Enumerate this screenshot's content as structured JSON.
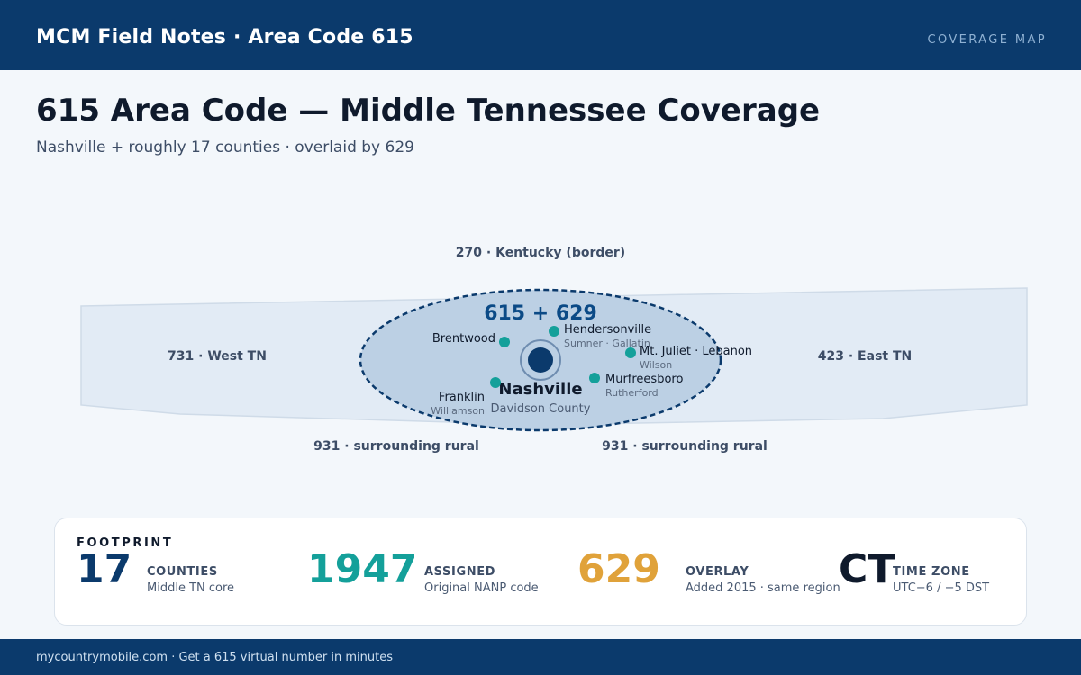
{
  "header": {
    "brand": "MCM Field Notes · Area Code 615",
    "section": "COVERAGE MAP"
  },
  "page": {
    "title": "615 Area Code — Middle Tennessee Coverage",
    "subtitle": "Nashville + roughly 17 counties · overlaid by 629"
  },
  "map": {
    "north_label": "270 · Kentucky (border)",
    "west_label": "731 · West TN",
    "east_label": "423 · East TN",
    "south_left_label": "931 · surrounding rural",
    "south_right_label": "931 · surrounding rural",
    "zone_label": "615 + 629",
    "center": {
      "city": "Nashville",
      "county": "Davidson County"
    },
    "cities": [
      {
        "name": "Brentwood",
        "county": ""
      },
      {
        "name": "Hendersonville",
        "county": "Sumner · Gallatin"
      },
      {
        "name": "Mt. Juliet · Lebanon",
        "county": "Wilson"
      },
      {
        "name": "Murfreesboro",
        "county": "Rutherford"
      },
      {
        "name": "Franklin",
        "county": "Williamson"
      }
    ],
    "colors": {
      "state_fill": "#e2ebf5",
      "zone_fill": "#bcd0e4",
      "zone_stroke": "#0b3a6c",
      "city_dot": "#14a09a",
      "center_dot": "#0b3a6c"
    }
  },
  "stats": {
    "label": "FOOTPRINT",
    "items": [
      {
        "value": "17",
        "title": "COUNTIES",
        "desc": "Middle TN core",
        "color": "#0b3a6c"
      },
      {
        "value": "1947",
        "title": "ASSIGNED",
        "desc": "Original NANP code",
        "color": "#14a09a"
      },
      {
        "value": "629",
        "title": "OVERLAY",
        "desc": "Added 2015 · same region",
        "color": "#e0a23a"
      },
      {
        "value": "CT",
        "title": "TIME ZONE",
        "desc": "UTC−6 / −5 DST",
        "color": "#0f1a2c"
      }
    ]
  },
  "footer": {
    "text": "mycountrymobile.com · Get a 615 virtual number in minutes"
  }
}
